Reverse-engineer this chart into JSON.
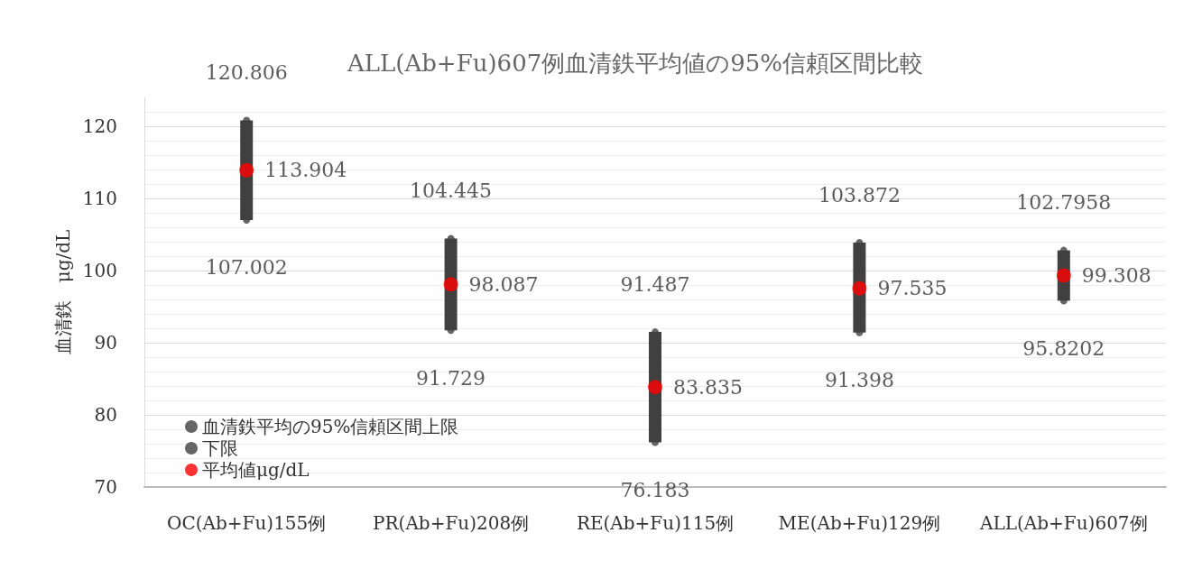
{
  "chart_data": {
    "type": "scatter",
    "title": "ALL(Ab+Fu)607例血清鉄平均値の95%信頼区間比較",
    "ylabel": "血清鉄　μg/dL",
    "categories": [
      "OC(Ab+Fu)155例",
      "PR(Ab+Fu)208例",
      "RE(Ab+Fu)115例",
      "ME(Ab+Fu)129例",
      "ALL(Ab+Fu)607例"
    ],
    "series": [
      {
        "type": "bar",
        "color": "#404040",
        "base": [
          107.002,
          91.729,
          76.183,
          91.398,
          95.8202
        ],
        "values": [
          13.804,
          12.716,
          15.304,
          12.474,
          6.9756
        ]
      },
      {
        "name": "血清鉄平均の95%信頼区間上限",
        "color": "#404040",
        "values": [
          120.806,
          104.445,
          91.487,
          103.872,
          102.7958
        ],
        "value_labels": [
          "120.806",
          "104.445",
          "91.487",
          "103.872",
          "102.7958"
        ]
      },
      {
        "name": "下限",
        "color": "#404040",
        "values": [
          107.002,
          91.729,
          76.183,
          91.398,
          95.8202
        ],
        "value_labels": [
          "107.002",
          "91.729",
          "76.183",
          "91.398",
          "95.8202"
        ]
      },
      {
        "name": "平均値μg/dL",
        "color": "#ff0000",
        "values": [
          113.904,
          98.087,
          83.835,
          97.535,
          99.308
        ],
        "value_labels": [
          "113.904",
          "98.087",
          "83.835",
          "97.535",
          "99.308"
        ]
      }
    ],
    "ylim": [
      70,
      124
    ],
    "yticks": [
      70,
      80,
      90,
      100,
      110,
      120
    ],
    "grid": true,
    "legend": "bottom left",
    "marker": "circle"
  }
}
